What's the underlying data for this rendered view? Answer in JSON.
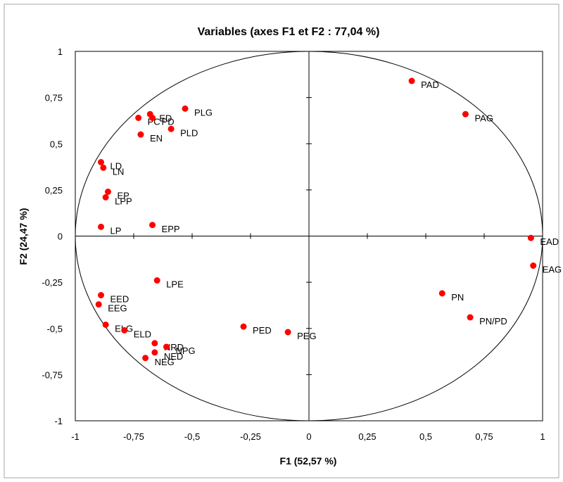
{
  "chart_data": {
    "type": "scatter",
    "title": "Variables (axes F1 et F2 : 77,04 %)",
    "xlabel": "F1 (52,57 %)",
    "ylabel": "F2 (24,47 %)",
    "xlim": [
      -1,
      1
    ],
    "ylim": [
      -1,
      1
    ],
    "x_ticks": [
      "-1",
      "-0,75",
      "-0,5",
      "-0,25",
      "0",
      "0,25",
      "0,5",
      "0,75",
      "1"
    ],
    "y_ticks": [
      "1",
      "0,75",
      "0,5",
      "0,25",
      "0",
      "-0,25",
      "-0,5",
      "-0,75",
      "-1"
    ],
    "grid": false,
    "correlation_circle": true,
    "marker_color": "#ff0000",
    "points": [
      {
        "label": "PAD",
        "x": 0.44,
        "y": 0.84
      },
      {
        "label": "PAG",
        "x": 0.67,
        "y": 0.66
      },
      {
        "label": "PLG",
        "x": -0.53,
        "y": 0.69
      },
      {
        "label": "ED",
        "x": -0.68,
        "y": 0.66
      },
      {
        "label": "PC",
        "x": -0.73,
        "y": 0.64
      },
      {
        "label": "PD",
        "x": -0.67,
        "y": 0.64
      },
      {
        "label": "PLD",
        "x": -0.59,
        "y": 0.58
      },
      {
        "label": "EN",
        "x": -0.72,
        "y": 0.55
      },
      {
        "label": "LD",
        "x": -0.89,
        "y": 0.4
      },
      {
        "label": "LN",
        "x": -0.88,
        "y": 0.37
      },
      {
        "label": "EP",
        "x": -0.86,
        "y": 0.24
      },
      {
        "label": "LPP",
        "x": -0.87,
        "y": 0.21
      },
      {
        "label": "LP",
        "x": -0.89,
        "y": 0.05
      },
      {
        "label": "EPP",
        "x": -0.67,
        "y": 0.06
      },
      {
        "label": "EAD",
        "x": 0.95,
        "y": -0.01
      },
      {
        "label": "EAG",
        "x": 0.96,
        "y": -0.16
      },
      {
        "label": "LPE",
        "x": -0.65,
        "y": -0.24
      },
      {
        "label": "EED",
        "x": -0.89,
        "y": -0.32
      },
      {
        "label": "EEG",
        "x": -0.9,
        "y": -0.37
      },
      {
        "label": "PN",
        "x": 0.57,
        "y": -0.31
      },
      {
        "label": "PN/PD",
        "x": 0.69,
        "y": -0.44
      },
      {
        "label": "ELG",
        "x": -0.87,
        "y": -0.48
      },
      {
        "label": "ELD",
        "x": -0.79,
        "y": -0.51
      },
      {
        "label": "PED",
        "x": -0.28,
        "y": -0.49
      },
      {
        "label": "PEG",
        "x": -0.09,
        "y": -0.52
      },
      {
        "label": "NRD",
        "x": -0.66,
        "y": -0.58
      },
      {
        "label": "NPG",
        "x": -0.61,
        "y": -0.6
      },
      {
        "label": "NED",
        "x": -0.66,
        "y": -0.63
      },
      {
        "label": "NEG",
        "x": -0.7,
        "y": -0.66
      }
    ]
  }
}
